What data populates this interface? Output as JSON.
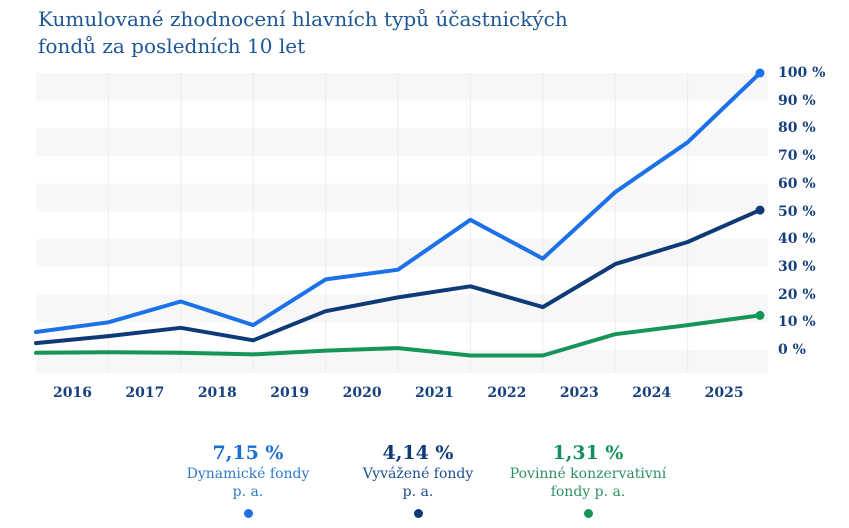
{
  "title": {
    "line1": "Kumulované zhodnocení hlavních typů účastnických",
    "line2": "fondů za posledních 10 let"
  },
  "colors": {
    "title_text": "#1d5795",
    "axis_text": "#16407e",
    "stripe": "#f7f7f8",
    "gridline": "#ededf0",
    "background": "#ffffff"
  },
  "chart_data": {
    "type": "line",
    "title": "Kumulované zhodnocení hlavních typů účastnických fondů za posledních 10 let",
    "x_categories": [
      "2016",
      "2017",
      "2018",
      "2019",
      "2020",
      "2021",
      "2022",
      "2023",
      "2024",
      "2025"
    ],
    "x_note": "11 data points sit on the year-band boundaries; year labels are centered inside each band",
    "y_axis": {
      "ticks": [
        {
          "label": "100 %",
          "value": 100
        },
        {
          "label": "90 %",
          "value": 90
        },
        {
          "label": "80 %",
          "value": 80
        },
        {
          "label": "70 %",
          "value": 70
        },
        {
          "label": "60 %",
          "value": 60
        },
        {
          "label": "50 %",
          "value": 50
        },
        {
          "label": "40 %",
          "value": 40
        },
        {
          "label": "30 %",
          "value": 30
        },
        {
          "label": "20 %",
          "value": 20
        },
        {
          "label": "10 %",
          "value": 10
        },
        {
          "label": "0 %",
          "value": 0
        }
      ],
      "ylim": [
        -7.9,
        100
      ]
    },
    "grid": {
      "horizontal_stripes": true,
      "vertical_lines": true,
      "legend_position": "bottom"
    },
    "series": [
      {
        "name": "Dynamické fondy",
        "color": "#1c70e8",
        "values": [
          6.5,
          10,
          17.5,
          9,
          25.5,
          29,
          47,
          33,
          57,
          75,
          100
        ]
      },
      {
        "name": "Vyvážené fondy",
        "color": "#0e3a78",
        "values": [
          2.5,
          5,
          8,
          3.5,
          14,
          19,
          23,
          15.5,
          31,
          39,
          50.5
        ]
      },
      {
        "name": "Povinné konzervativní fondy",
        "color": "#169558",
        "values": [
          -1,
          -0.8,
          -1,
          -1.6,
          -0.2,
          0.7,
          -2,
          -2,
          5.7,
          9,
          12.5
        ]
      }
    ]
  },
  "legend": {
    "items": [
      {
        "value": "7,15 %",
        "lines": [
          "Dynamické fondy",
          "p. a."
        ],
        "value_color": "#1c6fd2",
        "label_color": "#2f7ccc",
        "dot_color": "#1c70e8"
      },
      {
        "value": "4,14 %",
        "lines": [
          "Vyvážené fondy",
          "p. a."
        ],
        "value_color": "#0e3a78",
        "label_color": "#1d4e8c",
        "dot_color": "#0e3a78"
      },
      {
        "value": "1,31 %",
        "lines": [
          "Povinné konzervativní",
          "fondy p. a."
        ],
        "value_color": "#129059",
        "label_color": "#2f9161",
        "dot_color": "#169558"
      }
    ]
  }
}
